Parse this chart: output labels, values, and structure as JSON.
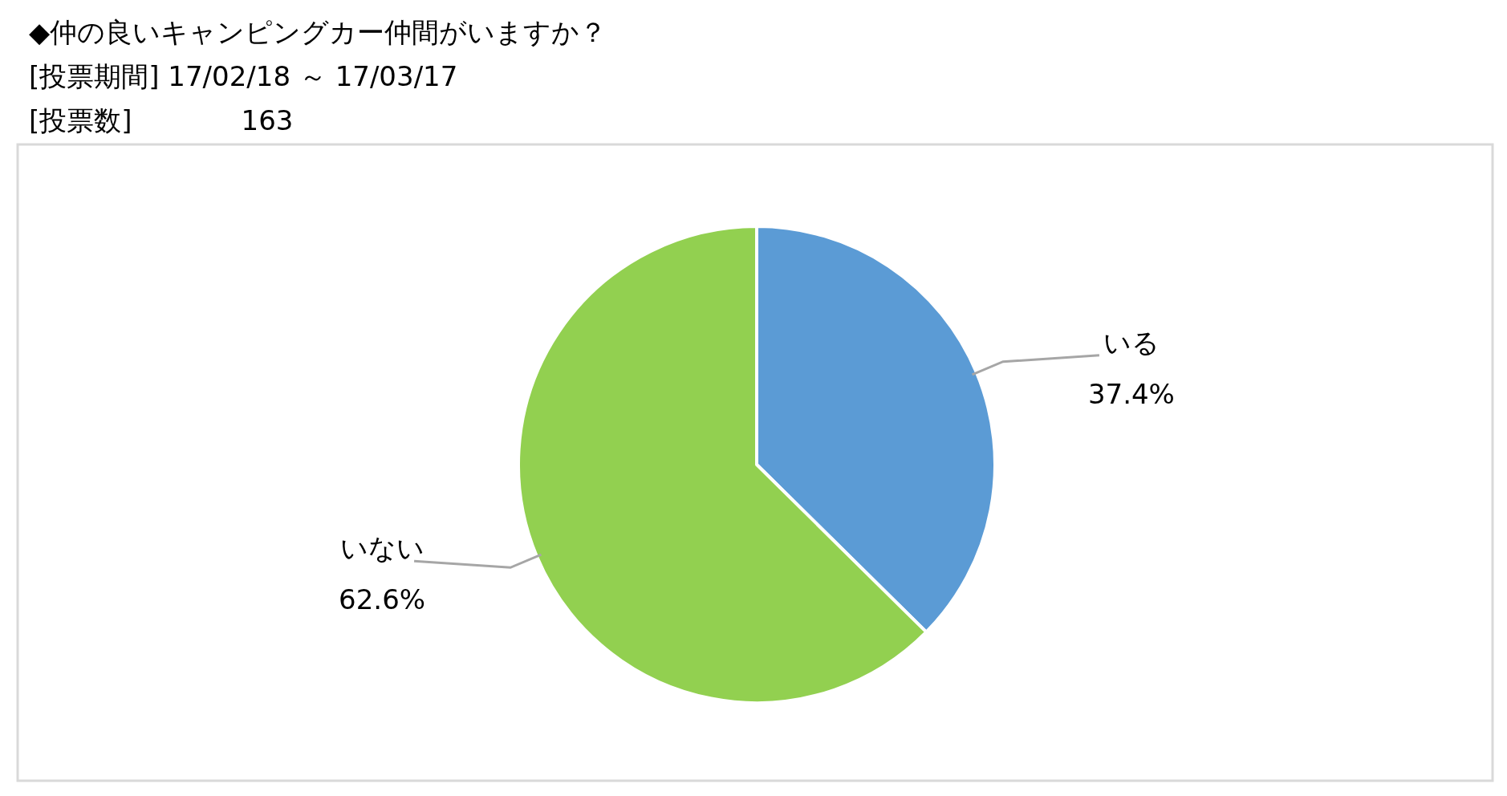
{
  "chart_data": {
    "type": "pie",
    "title": "◆仲の良いキャンピングカー仲間がいますか？",
    "subtitle": "[投票期間] 17/02/18 ～ 17/03/17",
    "annotations": [
      "[投票数]　　　　163"
    ],
    "categories": [
      "いる",
      "いない"
    ],
    "values": [
      37.4,
      62.6
    ],
    "colors": [
      "#5b9bd5",
      "#92d050"
    ],
    "value_labels": [
      "37.4%",
      "62.6%"
    ],
    "legend": false
  }
}
